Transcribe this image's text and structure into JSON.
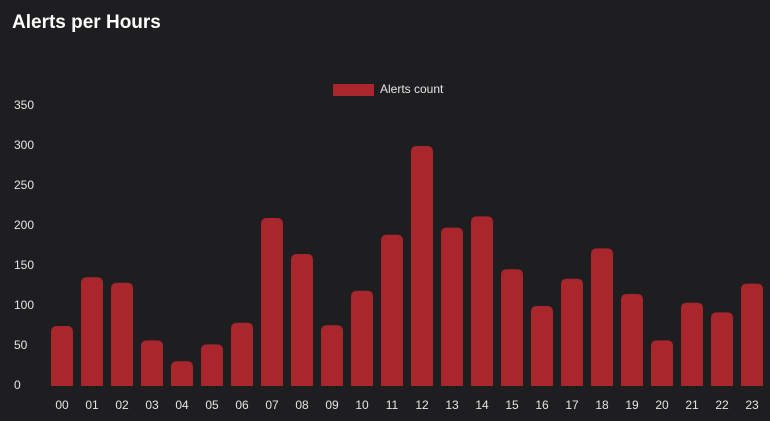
{
  "chart_data": {
    "type": "bar",
    "title": "Alerts per Hours",
    "categories": [
      "00",
      "01",
      "02",
      "03",
      "04",
      "05",
      "06",
      "07",
      "08",
      "09",
      "10",
      "11",
      "12",
      "13",
      "14",
      "15",
      "16",
      "17",
      "18",
      "19",
      "20",
      "21",
      "22",
      "23"
    ],
    "series": [
      {
        "name": "Alerts count",
        "color": "#a8262c",
        "values": [
          75,
          136,
          129,
          57,
          31,
          52,
          79,
          210,
          165,
          76,
          119,
          189,
          300,
          198,
          212,
          146,
          100,
          134,
          172,
          115,
          57,
          104,
          92,
          128
        ]
      }
    ],
    "ylim": [
      0,
      350
    ],
    "yticks": [
      0,
      50,
      100,
      150,
      200,
      250,
      300,
      350
    ],
    "grid": false
  }
}
